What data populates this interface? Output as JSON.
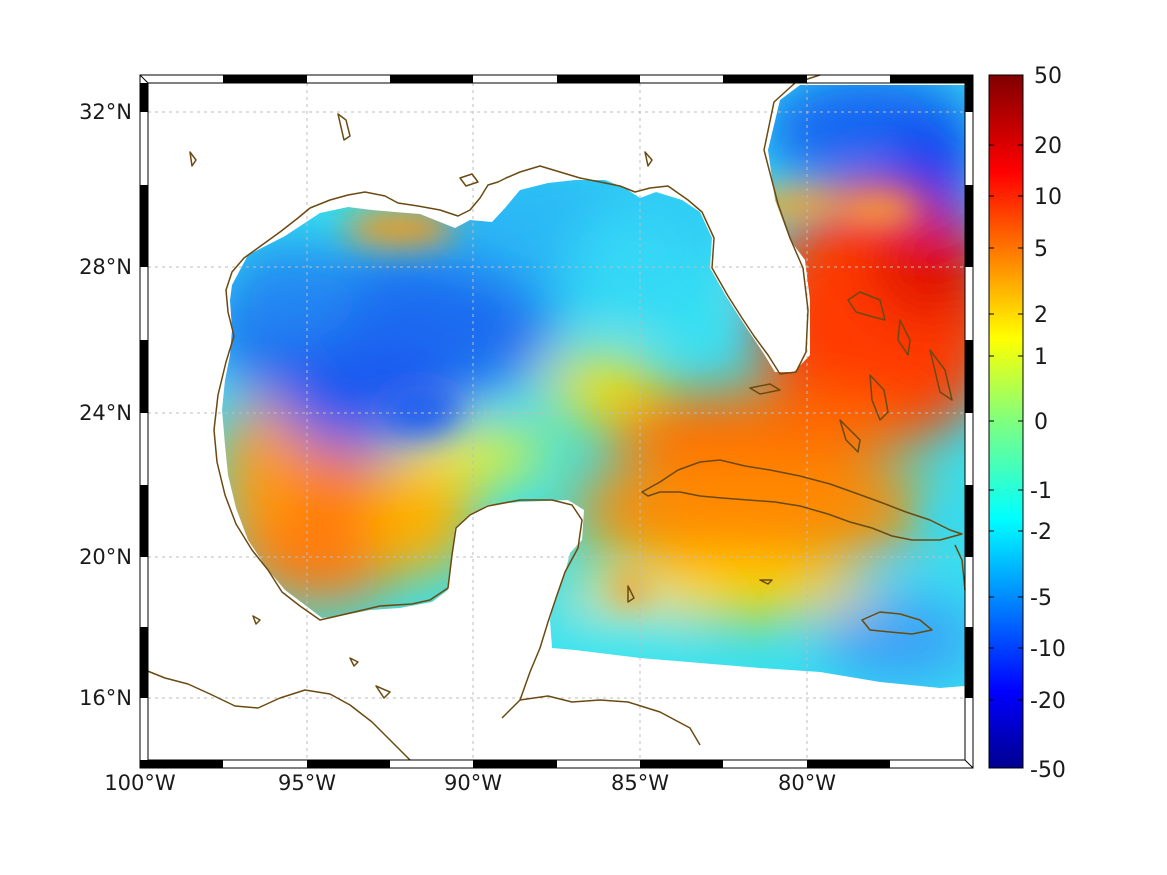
{
  "map": {
    "lon_range": [
      -100,
      -75
    ],
    "lat_range": [
      14,
      33
    ],
    "lon_ticks": [
      {
        "value": -100,
        "label": "100°W"
      },
      {
        "value": -95,
        "label": "95°W"
      },
      {
        "value": -90,
        "label": "90°W"
      },
      {
        "value": -85,
        "label": "85°W"
      },
      {
        "value": -80,
        "label": "80°W"
      }
    ],
    "lat_ticks": [
      {
        "value": 32,
        "label": "32°N"
      },
      {
        "value": 28,
        "label": "28°N"
      },
      {
        "value": 24,
        "label": "24°N"
      },
      {
        "value": 20,
        "label": "20°N"
      },
      {
        "value": 16,
        "label": "16°N"
      }
    ],
    "grid": true,
    "coastline_color": "#6b4a12"
  },
  "colorbar": {
    "colormap": "jet",
    "ticks": [
      {
        "value": 50,
        "label": "50"
      },
      {
        "value": 20,
        "label": "20"
      },
      {
        "value": 10,
        "label": "10"
      },
      {
        "value": 5,
        "label": "5"
      },
      {
        "value": 2,
        "label": "2"
      },
      {
        "value": 1,
        "label": "1"
      },
      {
        "value": 0,
        "label": "0"
      },
      {
        "value": -1,
        "label": "-1"
      },
      {
        "value": -2,
        "label": "-2"
      },
      {
        "value": -5,
        "label": "-5"
      },
      {
        "value": -10,
        "label": "-10"
      },
      {
        "value": -20,
        "label": "-20"
      },
      {
        "value": -50,
        "label": "-50"
      }
    ]
  }
}
